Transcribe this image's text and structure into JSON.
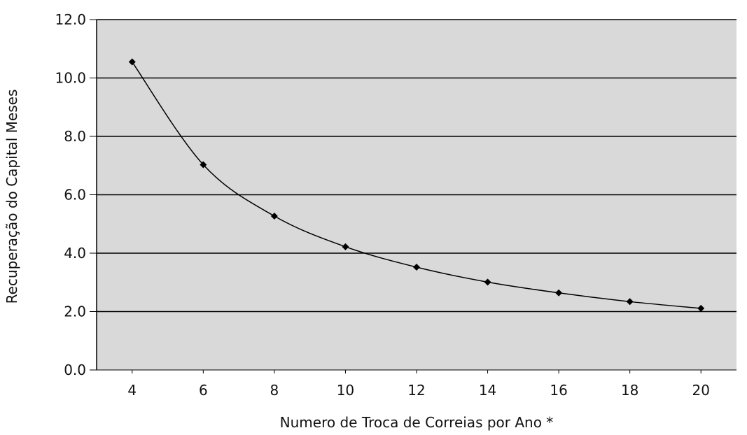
{
  "chart_data": {
    "type": "line",
    "title": "",
    "xlabel": "Numero de Troca de Correias por Ano *",
    "ylabel": "Recuperação do Capital Meses",
    "xlim": [
      3,
      21
    ],
    "ylim": [
      0,
      12
    ],
    "x_ticks": [
      4,
      6,
      8,
      10,
      12,
      14,
      16,
      18,
      20
    ],
    "x_tick_labels": [
      "4",
      "6",
      "8",
      "10",
      "12",
      "14",
      "16",
      "18",
      "20"
    ],
    "y_ticks": [
      0,
      2,
      4,
      6,
      8,
      10,
      12
    ],
    "y_tick_labels": [
      "0.0",
      "2.0",
      "4.0",
      "6.0",
      "8.0",
      "10.0",
      "12.0"
    ],
    "grid": "horizontal",
    "legend": "none",
    "smooth": true,
    "series": [
      {
        "x": [
          4,
          6,
          8,
          10,
          12,
          14,
          16,
          18,
          20
        ],
        "y": [
          10.55,
          7.03,
          5.27,
          4.22,
          3.52,
          3.01,
          2.64,
          2.34,
          2.11
        ]
      }
    ],
    "colors": {
      "plot_background": "#d9d9d9",
      "gridline": "#000000",
      "line": "#000000",
      "marker": "#000000"
    }
  }
}
